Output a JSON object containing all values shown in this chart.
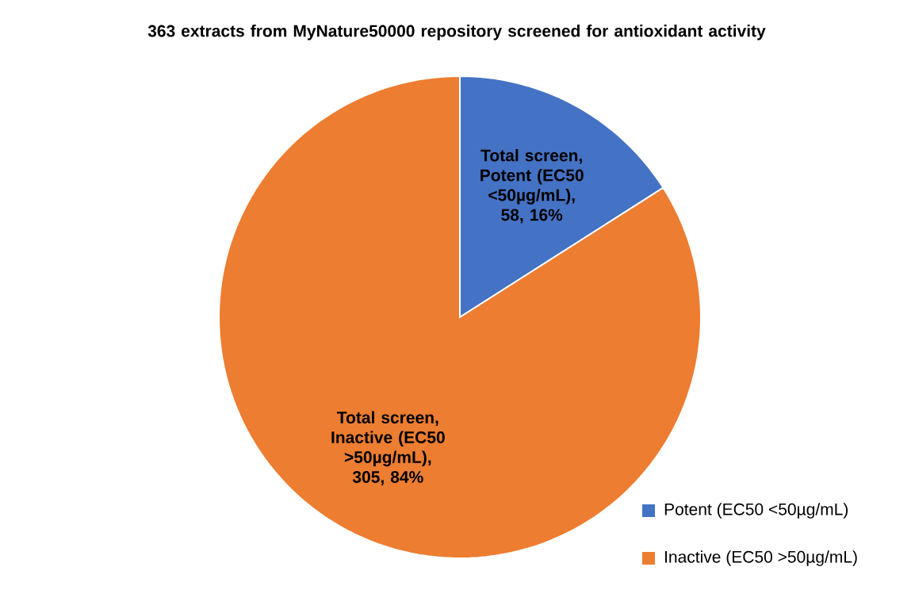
{
  "chart_data": {
    "type": "pie",
    "title": "363 extracts from MyNature50000 repository screened for antioxidant activity",
    "categories": [
      "Potent (EC50 <50µg/mL)",
      "Inactive (EC50 >50µg/mL)"
    ],
    "values": [
      58,
      305
    ],
    "colors": [
      "#4472c4",
      "#ed7d31"
    ],
    "value_labels": [
      "Total screen, Potent (EC50 <50µg/mL), 58, 16%",
      "Total screen, Inactive (EC50 >50µg/mL), 305, 84%"
    ],
    "legend": "bottom right"
  }
}
